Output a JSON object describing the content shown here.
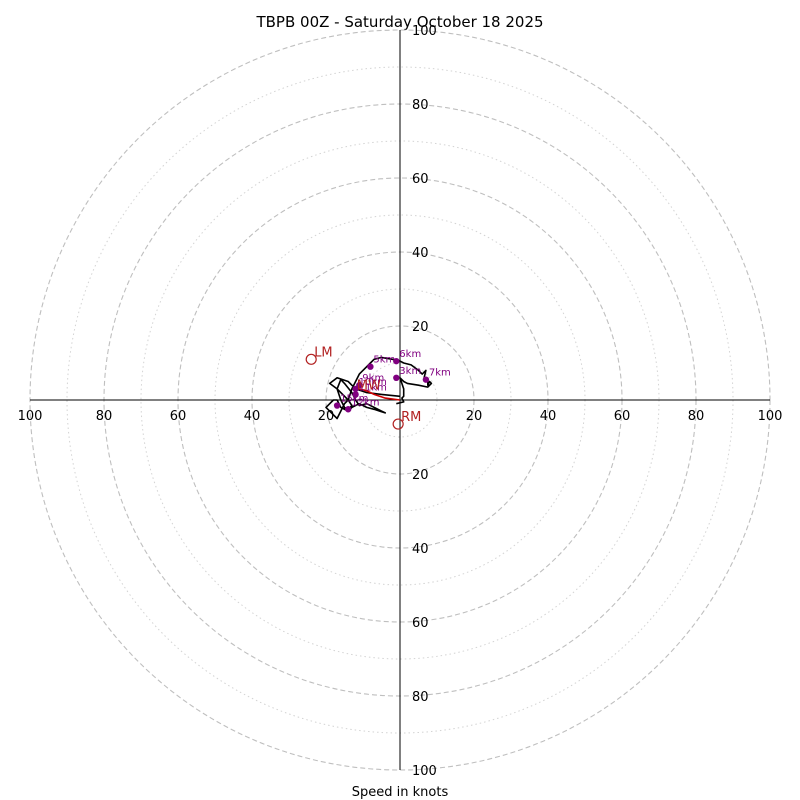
{
  "chart_data": {
    "type": "hodograph",
    "title": "TBPB 00Z - Saturday October 18 2025",
    "xlabel": "Speed in knots",
    "units": "knots",
    "axis_range": [
      -100,
      100
    ],
    "ring_major": [
      20,
      40,
      60,
      80,
      100
    ],
    "ring_minor": [
      10,
      30,
      50,
      70,
      90
    ],
    "tick_values": [
      20,
      40,
      60,
      80,
      100
    ],
    "tick_labels": {
      "left": [
        "100",
        "80",
        "60",
        "40",
        "20"
      ],
      "right": [
        "20",
        "40",
        "60",
        "80",
        "100"
      ],
      "top": [
        "100",
        "80",
        "60",
        "40",
        "20"
      ],
      "bottom": [
        "20",
        "40",
        "60",
        "80",
        "100"
      ]
    },
    "trace": {
      "color": "#000000",
      "lowlevel_color": "#cc0000",
      "points": [
        [
          0,
          1
        ],
        [
          -5,
          1.5
        ],
        [
          -9,
          2
        ],
        [
          -12,
          3
        ],
        [
          -14,
          5
        ],
        [
          -17,
          6
        ],
        [
          -19,
          4.5
        ],
        [
          -17,
          3
        ],
        [
          -16,
          0
        ],
        [
          -15,
          -2
        ],
        [
          -14,
          -2.5
        ],
        [
          -13,
          -1.5
        ],
        [
          -14,
          0
        ],
        [
          -16,
          2
        ],
        [
          -17,
          3
        ],
        [
          -16,
          5.5
        ],
        [
          -15,
          4.5
        ],
        [
          -13,
          2
        ],
        [
          -12,
          0
        ],
        [
          -11,
          -1.5
        ],
        [
          -9,
          -1
        ],
        [
          -7,
          -2
        ],
        [
          -5,
          -3
        ],
        [
          -4,
          -3.5
        ],
        [
          -7,
          -2.5
        ],
        [
          -9,
          -2
        ],
        [
          -11,
          -1
        ],
        [
          -13,
          -2
        ],
        [
          -14,
          -3
        ],
        [
          -16,
          -2
        ],
        [
          -17,
          0
        ],
        [
          -18,
          0
        ],
        [
          -19,
          -1
        ],
        [
          -20,
          -2
        ],
        [
          -18,
          -4
        ],
        [
          -17,
          -5
        ],
        [
          -16,
          -3
        ],
        [
          -15,
          -1
        ],
        [
          -14,
          0
        ],
        [
          -13,
          3
        ],
        [
          -12,
          5
        ],
        [
          -11,
          7
        ],
        [
          -9,
          9
        ],
        [
          -8,
          10
        ],
        [
          -7,
          11
        ],
        [
          -5,
          11.5
        ],
        [
          -2,
          11
        ],
        [
          0,
          10.5
        ],
        [
          1,
          10
        ],
        [
          3,
          9.5
        ],
        [
          5,
          8
        ],
        [
          6,
          7
        ],
        [
          7,
          8
        ],
        [
          6.5,
          6
        ],
        [
          7.5,
          5
        ],
        [
          7.5,
          4
        ],
        [
          8,
          5
        ],
        [
          8.5,
          4.5
        ],
        [
          7.5,
          3.5
        ],
        [
          5,
          4
        ],
        [
          2,
          4.5
        ],
        [
          1,
          5
        ],
        [
          0,
          6
        ],
        [
          1,
          3
        ],
        [
          1,
          1
        ],
        [
          0.5,
          0.5
        ],
        [
          1,
          -0.5
        ],
        [
          -1,
          -1
        ]
      ],
      "lowlevel_points": [
        [
          0,
          0
        ],
        [
          -4,
          0.5
        ],
        [
          -7,
          1.5
        ],
        [
          -9,
          2.5
        ],
        [
          -11,
          3
        ]
      ]
    },
    "height_markers": [
      {
        "label": "3km",
        "u": -1,
        "v": 6
      },
      {
        "label": "5km",
        "u": -8,
        "v": 9
      },
      {
        "label": "6km",
        "u": -1,
        "v": 10.5
      },
      {
        "label": "7km",
        "u": 7,
        "v": 5.5
      },
      {
        "label": "9km",
        "u": -11,
        "v": 4
      },
      {
        "label": "10km",
        "u": -12,
        "v": 3
      },
      {
        "label": "11km",
        "u": -12,
        "v": 1.5
      },
      {
        "label": "12km",
        "u": -14,
        "v": -2.5
      },
      {
        "label": "15km",
        "u": -17,
        "v": -1.5
      }
    ],
    "storm_motion": [
      {
        "label": "LM",
        "u": -24,
        "v": 11
      },
      {
        "label": "RM",
        "u": -0.5,
        "v": -6.5
      },
      {
        "label": "MW",
        "u": -12.5,
        "v": 2
      }
    ],
    "colors": {
      "ring": "#bfbfbf",
      "axis": "#000000",
      "marker": "#800080",
      "storm_motion": "#b22222"
    }
  }
}
